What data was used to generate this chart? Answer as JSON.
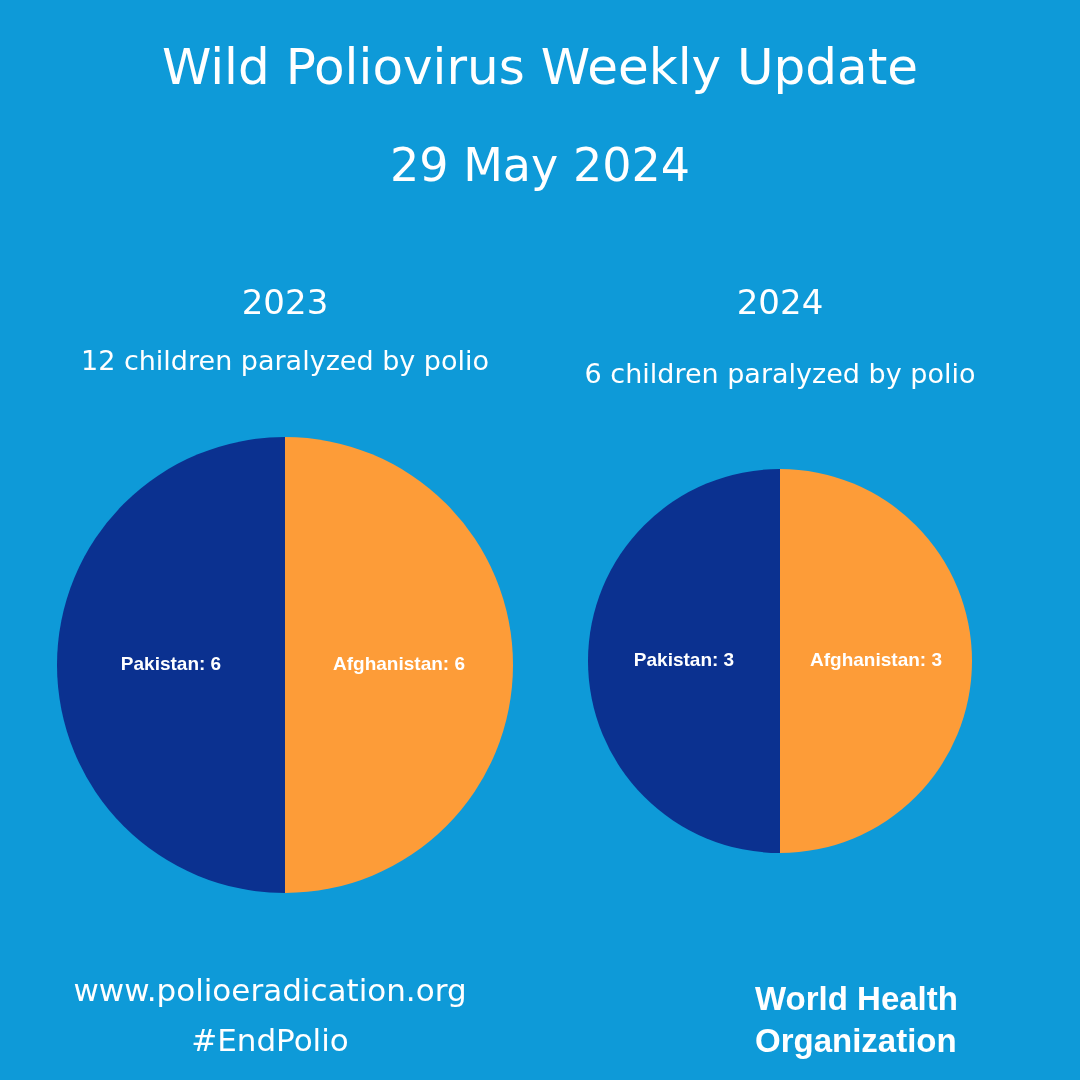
{
  "chart_data": [
    {
      "type": "other",
      "title": "Wild Poliovirus Weekly Update",
      "subtitle": "29 May 2024",
      "annotations": [
        "www.polioeradication.org",
        "#EndPolio",
        "World Health Organization"
      ]
    },
    {
      "type": "pie",
      "title": "2023",
      "subtitle": "12 children paralyzed by polio",
      "categories": [
        "Pakistan: 6",
        "Afghanistan: 6"
      ],
      "values": [
        6,
        6
      ],
      "colors": [
        "#0b3190",
        "#fd9c38"
      ]
    },
    {
      "type": "pie",
      "title": "2024",
      "subtitle": "6 children paralyzed by polio",
      "categories": [
        "Pakistan: 3",
        "Afghanistan: 3"
      ],
      "values": [
        3,
        3
      ],
      "colors": [
        "#0b3190",
        "#fd9c38"
      ]
    }
  ]
}
